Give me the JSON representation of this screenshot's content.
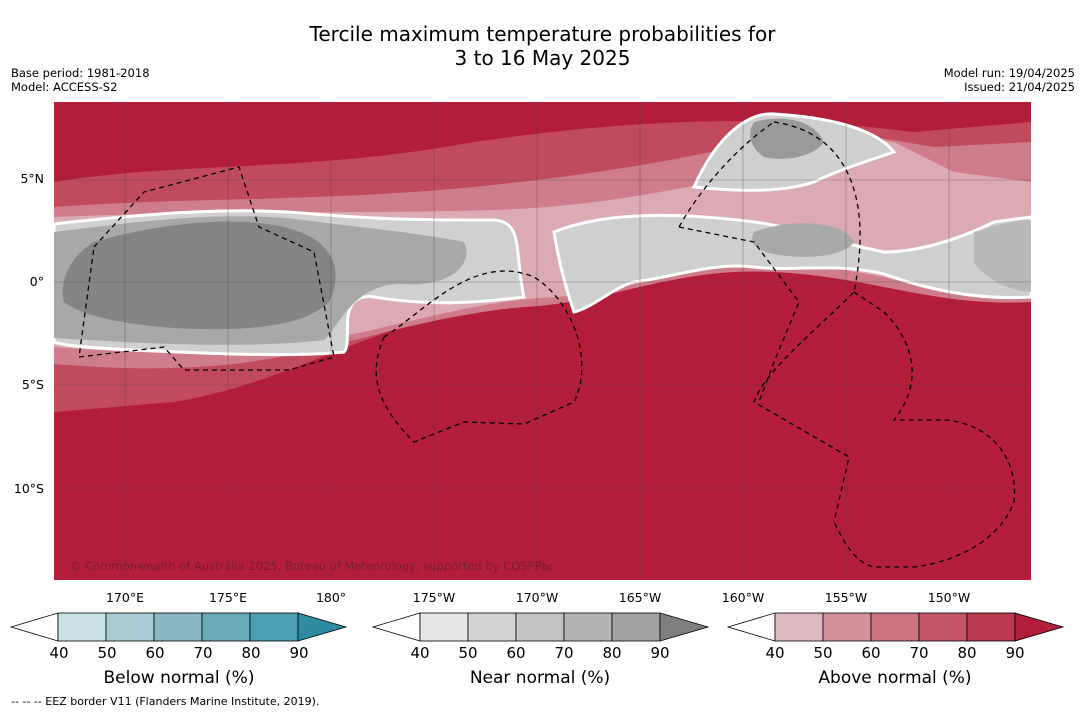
{
  "title_line1": "Tercile maximum temperature probabilities for",
  "title_line2": "3 to 16 May 2025",
  "base_period": "Base period: 1981-2018",
  "model": "Model: ACCESS-S2",
  "model_run": "Model run: 19/04/2025",
  "issued": "Issued: 21/04/2025",
  "copyright": "© Commonwealth of Australia 2025, Bureau of Meteorology, supported by COSPPac",
  "lat_labels": [
    "5°N",
    "0°",
    "5°S",
    "10°S"
  ],
  "lon_labels": [
    "170°E",
    "175°E",
    "180°",
    "175°W",
    "170°W",
    "165°W",
    "160°W",
    "155°W",
    "150°W"
  ],
  "colorbars": [
    {
      "title": "Below normal (%)",
      "ticks": [
        "40",
        "50",
        "60",
        "70",
        "80",
        "90"
      ],
      "colors": [
        "#ffffff",
        "#c9e2e9",
        "#a8cad3",
        "#89b7c3",
        "#6aa9b8",
        "#4b9fb0",
        "#2d8aa0"
      ]
    },
    {
      "title": "Near normal (%)",
      "ticks": [
        "40",
        "50",
        "60",
        "70",
        "80",
        "90"
      ],
      "colors": [
        "#ffffff",
        "#e6e6e6",
        "#d4d4d4",
        "#c4c4c4",
        "#b4b4b4",
        "#a2a2a2",
        "#7f7f7f"
      ]
    },
    {
      "title": "Above normal (%)",
      "ticks": [
        "40",
        "50",
        "60",
        "70",
        "80",
        "90"
      ],
      "colors": [
        "#ffffff",
        "#e0b8bf",
        "#d6929c",
        "#cc7480",
        "#c45566",
        "#b93a4e",
        "#b21d3a"
      ]
    }
  ],
  "footnote": "--  --  -- EEZ border V11 (Flanders Marine Institute, 2019)."
}
